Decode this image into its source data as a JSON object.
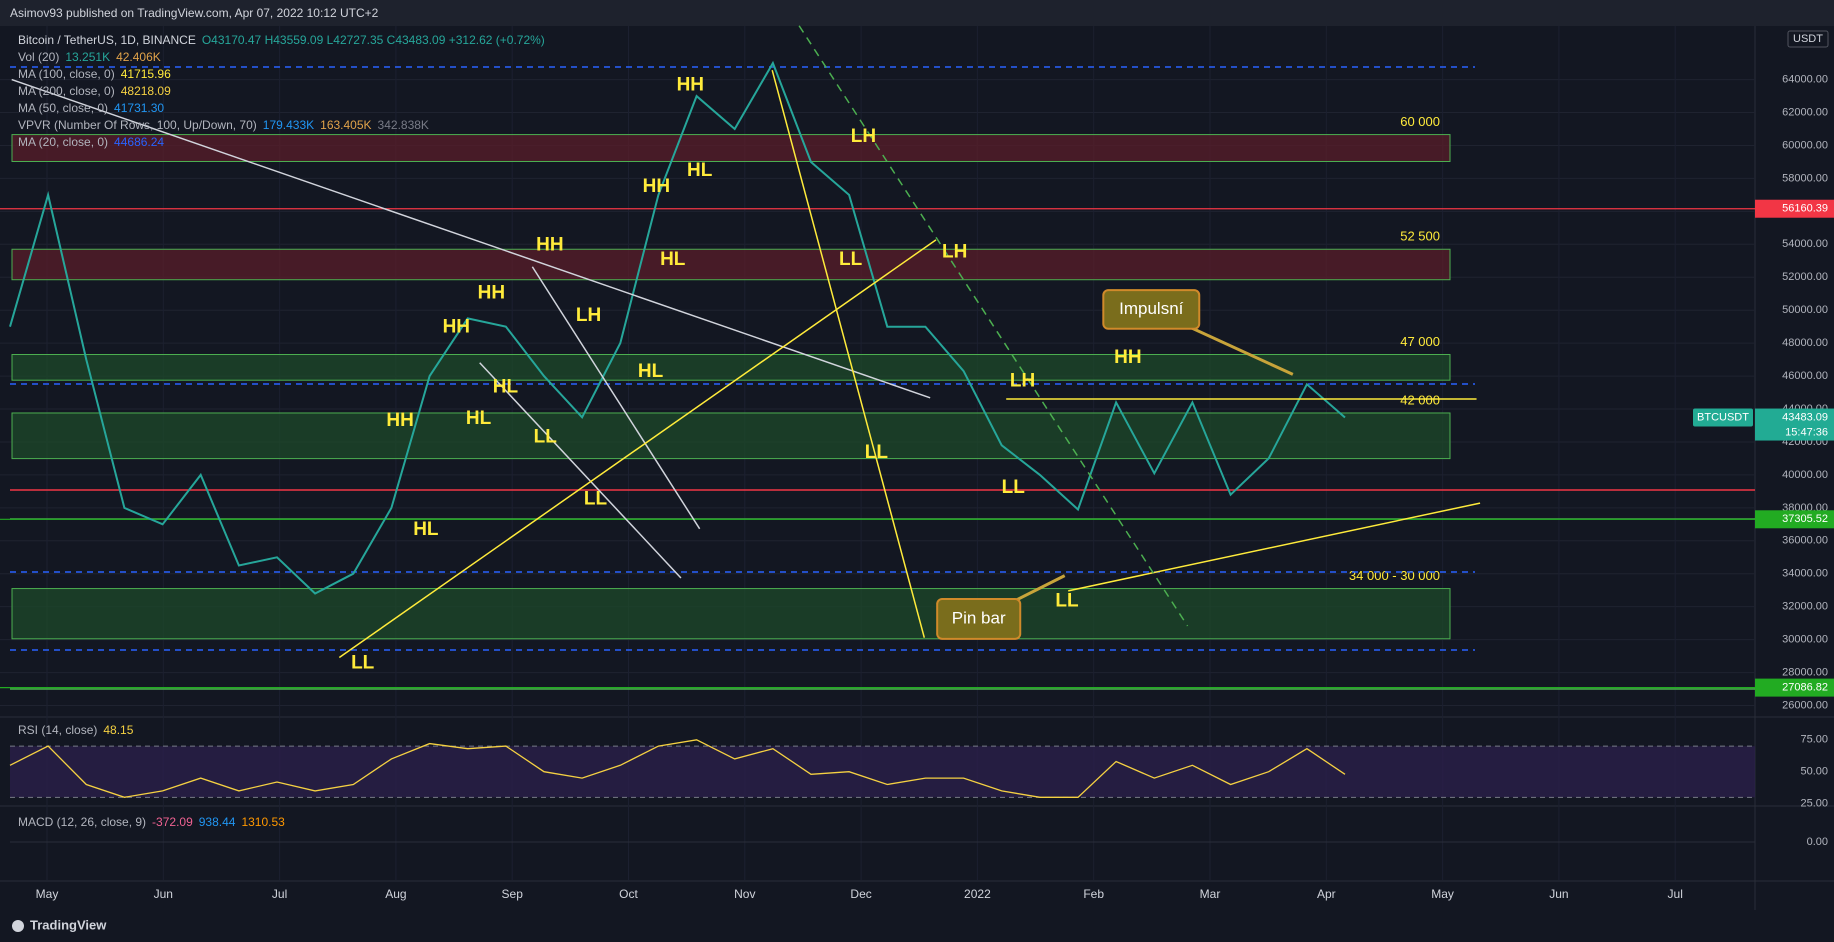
{
  "header": {
    "publisher": "Asimov93 published on TradingView.com, Apr 07, 2022 10:12 UTC+2"
  },
  "chart_data": {
    "type": "line",
    "symbol": "Bitcoin / TetherUS, 1D, BINANCE",
    "ohlc": "O43170.47 H43559.09 L42727.35 C43483.09 +312.62 (+0.72%)",
    "indicators": [
      {
        "name": "Vol (20)",
        "values": [
          "13.251K",
          "42.406K"
        ]
      },
      {
        "name": "MA (100, close, 0)",
        "values": [
          "41715.96"
        ]
      },
      {
        "name": "MA (200, close, 0)",
        "values": [
          "48218.09"
        ]
      },
      {
        "name": "MA (50, close, 0)",
        "values": [
          "41731.30"
        ]
      },
      {
        "name": "VPVR (Number Of Rows, 100, Up/Down, 70)",
        "values": [
          "179.433K",
          "163.405K",
          "342.838K"
        ]
      },
      {
        "name": "MA (20, close, 0)",
        "values": [
          "44686.24"
        ]
      }
    ],
    "currency": "USDT",
    "time_labels": [
      "May",
      "Jun",
      "Jul",
      "Aug",
      "Sep",
      "Oct",
      "Nov",
      "Dec",
      "2022",
      "Feb",
      "Mar",
      "Apr",
      "May",
      "Jun",
      "Jul"
    ],
    "values": [
      49000,
      57000,
      47000,
      38000,
      37000,
      40000,
      34500,
      35000,
      32800,
      34000,
      38000,
      46000,
      49500,
      49000,
      46000,
      43500,
      48000,
      57000,
      63000,
      61000,
      65000,
      59000,
      57000,
      49000,
      49000,
      46300,
      41800,
      40000,
      37900,
      44400,
      40100,
      44400,
      38800,
      41000,
      45500,
      43483.09
    ],
    "color": "#26a69a",
    "ylim": [
      25363,
      67254
    ],
    "yticks": [
      {
        "value": 26000,
        "label": "26000.00"
      },
      {
        "value": 28000,
        "label": "28000.00"
      },
      {
        "value": 30000,
        "label": "30000.00"
      },
      {
        "value": 32000,
        "label": "32000.00"
      },
      {
        "value": 34000,
        "label": "34000.00"
      },
      {
        "value": 36000,
        "label": "36000.00"
      },
      {
        "value": 38000,
        "label": "38000.00"
      },
      {
        "value": 40000,
        "label": "40000.00"
      },
      {
        "value": 42000,
        "label": "42000.00"
      },
      {
        "value": 44000,
        "label": "44000.00"
      },
      {
        "value": 46000,
        "label": "46000.00"
      },
      {
        "value": 48000,
        "label": "48000.00"
      },
      {
        "value": 50000,
        "label": "50000.00"
      },
      {
        "value": 52000,
        "label": "52000.00"
      },
      {
        "value": 54000,
        "label": "54000.00"
      },
      {
        "value": 56000,
        "label": "56000.00"
      },
      {
        "value": 58000,
        "label": "58000.00"
      },
      {
        "value": 60000,
        "label": "60000.00"
      },
      {
        "value": 62000,
        "label": "62000.00"
      },
      {
        "value": 64000,
        "label": "64000.00"
      }
    ],
    "grid": true,
    "price_tags": [
      {
        "value": 56160.39,
        "color": "#f23645"
      },
      {
        "value": 43483.09,
        "color": "#22ab94",
        "symbol": "BTCUSDT",
        "countdown": "15:47:36"
      },
      {
        "value": 37305.52,
        "color": "#22ab22"
      },
      {
        "value": 27086.82,
        "color": "#22ab22"
      }
    ],
    "zones": [
      {
        "label": "60 000",
        "from": 59028,
        "to": 60662,
        "color": "#5a1e2a"
      },
      {
        "label": "52 500",
        "from": 51850,
        "to": 53700,
        "color": "#5a1e2a"
      },
      {
        "label": "47 000",
        "from": 45750,
        "to": 47310,
        "color": "#1e4a2a"
      },
      {
        "label": "42 000",
        "from": 40990,
        "to": 43760,
        "color": "#1e4a2a"
      },
      {
        "label": "34 000 - 30 000",
        "from": 30050,
        "to": 33100,
        "color": "#1e4a2a"
      }
    ],
    "pattern_labels": [
      "HH",
      "HH",
      "HL",
      "LH",
      "HH",
      "HL",
      "LL",
      "LH",
      "HH",
      "LH",
      "HH",
      "HL",
      "HL",
      "HH",
      "HL",
      "LL",
      "LH",
      "HH",
      "LL",
      "LL",
      "LL",
      "HL",
      "LL",
      "LL"
    ],
    "callouts": [
      "Impulsní",
      "Pin bar"
    ]
  },
  "rsi_pane": {
    "title": "RSI (14, close)",
    "last": "48.15",
    "values": [
      55,
      70,
      40,
      30,
      35,
      45,
      35,
      42,
      35,
      40,
      60,
      72,
      68,
      70,
      50,
      45,
      55,
      70,
      75,
      60,
      68,
      48,
      50,
      40,
      45,
      45,
      35,
      30,
      30,
      58,
      45,
      55,
      40,
      50,
      68,
      48
    ],
    "color": "#f5d142",
    "ylim": [
      24,
      92
    ],
    "yticks": [
      {
        "value": 75,
        "label": "75.00"
      },
      {
        "value": 50,
        "label": "50.00"
      },
      {
        "value": 25,
        "label": "25.00"
      }
    ],
    "bands": [
      30,
      70
    ]
  },
  "macd_pane": {
    "title": "MACD (12, 26, close, 9)",
    "values": [
      "-372.09",
      "938.44",
      "1310.53"
    ],
    "ylim": [
      -2000,
      1840
    ],
    "yticks": [
      {
        "value": 0,
        "label": "0.00"
      }
    ]
  },
  "footer": {
    "brand": "TradingView"
  }
}
